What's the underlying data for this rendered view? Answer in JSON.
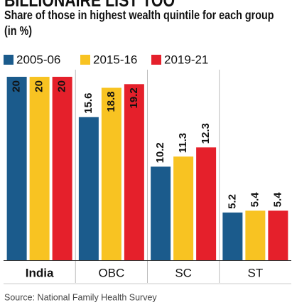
{
  "chart_data": {
    "type": "bar",
    "heading": "BILLIONAIRE LIST TOO",
    "title": "Share of those in highest wealth quintile for each group (in %)",
    "categories": [
      "India",
      "OBC",
      "SC",
      "ST"
    ],
    "series": [
      {
        "name": "2005-06",
        "color": "#1b5b8c",
        "values": [
          20,
          15.6,
          10.2,
          5.2
        ]
      },
      {
        "name": "2015-16",
        "color": "#f8c322",
        "values": [
          20,
          18.8,
          11.3,
          5.4
        ]
      },
      {
        "name": "2019-21",
        "color": "#e5202b",
        "values": [
          20,
          19.2,
          12.3,
          5.4
        ]
      }
    ],
    "source": "Source: National Family Health Survey"
  }
}
